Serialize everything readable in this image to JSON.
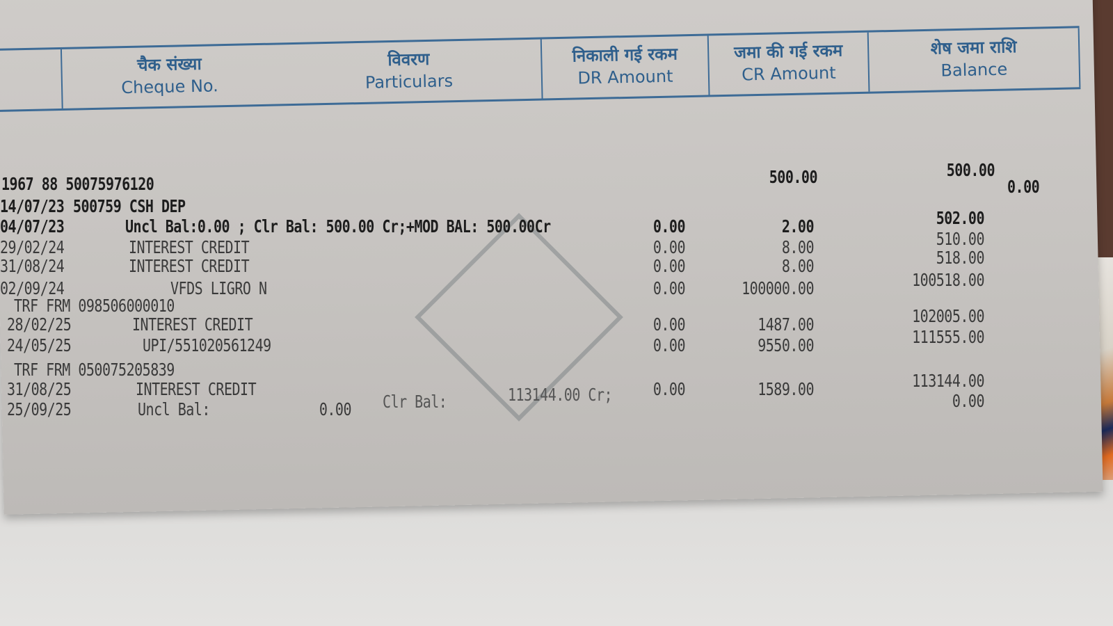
{
  "header": {
    "columns": [
      {
        "hindi": "",
        "english": ""
      },
      {
        "hindi": "चैक संख्या",
        "english": "Cheque No."
      },
      {
        "hindi": "विवरण",
        "english": "Particulars"
      },
      {
        "hindi": "निकाली गई रकम",
        "english": "DR Amount"
      },
      {
        "hindi": "जमा की गई रकम",
        "english": "CR Amount"
      },
      {
        "hindi": "शेष जमा राशि",
        "english": "Balance"
      }
    ]
  },
  "entries": {
    "account_line": "1967 88 50075976120",
    "rows": [
      {
        "date": "14/07/23",
        "particulars": "500759 CSH DEP",
        "dr": "",
        "cr": "500.00",
        "balance": "500.00"
      },
      {
        "date": "04/07/23",
        "particulars": "Uncl Bal:0.00 ; Clr Bal: 500.00 Cr;+MOD BAL: 500.00Cr",
        "dr": "0.00",
        "cr": "2.00",
        "balance": "502.00"
      },
      {
        "date": "29/02/24",
        "particulars": "INTEREST CREDIT",
        "dr": "0.00",
        "cr": "8.00",
        "balance": "510.00"
      },
      {
        "date": "31/08/24",
        "particulars": "INTEREST CREDIT",
        "dr": "0.00",
        "cr": "8.00",
        "balance": "518.00"
      },
      {
        "date": "02/09/24",
        "particulars": "VFDS LIGRO N",
        "dr": "0.00",
        "cr": "100000.00",
        "balance": "100518.00"
      },
      {
        "date": "",
        "particulars": "TRF FRM 098506000010",
        "dr": "",
        "cr": "",
        "balance": ""
      },
      {
        "date": "28/02/25",
        "particulars": "INTEREST CREDIT",
        "dr": "0.00",
        "cr": "1487.00",
        "balance": "102005.00"
      },
      {
        "date": "24/05/25",
        "particulars": "UPI/551020561249",
        "dr": "0.00",
        "cr": "9550.00",
        "balance": "111555.00"
      },
      {
        "date": "",
        "particulars": "TRF FRM 050075205839",
        "dr": "",
        "cr": "",
        "balance": ""
      },
      {
        "date": "31/08/25",
        "particulars": "INTEREST CREDIT",
        "dr": "0.00",
        "cr": "1589.00",
        "balance": "113144.00"
      },
      {
        "date": "25/09/25",
        "particulars": "Uncl Bal:",
        "dr": "0.00",
        "cr": "",
        "balance": "0.00"
      }
    ],
    "closing_clr_label": "Clr Bal:",
    "closing_clr_value": "113144.00 Cr;",
    "side_value": "0.00"
  }
}
